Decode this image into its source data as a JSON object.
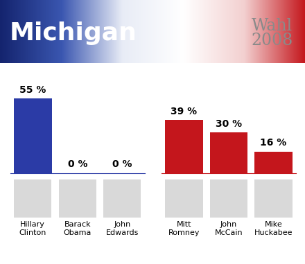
{
  "title": "Michigan",
  "subtitle": "Wahl\n2008",
  "chart_data": [
    {
      "type": "bar",
      "categories": [
        "Hillary\nClinton",
        "Barack\nObama",
        "John\nEdwards"
      ],
      "values": [
        55,
        0,
        0
      ],
      "value_labels": [
        "55 %",
        "0 %",
        "0 %"
      ],
      "color": "#2b3ba6",
      "data_labels": true,
      "tick_labels": "x",
      "ylim": [
        0,
        55
      ]
    },
    {
      "type": "bar",
      "categories": [
        "Mitt\nRomney",
        "John\nMcCain",
        "Mike\nHuckabee"
      ],
      "values": [
        39,
        30,
        16
      ],
      "value_labels": [
        "39 %",
        "30 %",
        "16 %"
      ],
      "color": "#c4161c",
      "data_labels": true,
      "tick_labels": "x",
      "ylim": [
        0,
        55
      ]
    }
  ]
}
